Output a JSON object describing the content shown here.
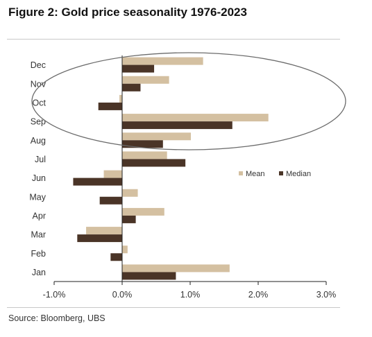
{
  "title": "Figure 2: Gold price seasonality 1976-2023",
  "source": "Source: Bloomberg, UBS",
  "colors": {
    "mean": "#d4c0a1",
    "median": "#4a3427",
    "axis": "#222222",
    "highlight": "#6b6b6b"
  },
  "chart_data": {
    "type": "bar",
    "orientation": "horizontal",
    "categories": [
      "Jan",
      "Feb",
      "Mar",
      "Apr",
      "May",
      "Jun",
      "Jul",
      "Aug",
      "Sep",
      "Oct",
      "Nov",
      "Dec"
    ],
    "series": [
      {
        "name": "Mean",
        "values": [
          1.58,
          0.08,
          -0.53,
          0.62,
          0.23,
          -0.27,
          0.66,
          1.01,
          2.15,
          -0.04,
          0.69,
          1.19
        ]
      },
      {
        "name": "Median",
        "values": [
          0.79,
          -0.17,
          -0.66,
          0.2,
          -0.33,
          -0.72,
          0.93,
          0.6,
          1.62,
          -0.35,
          0.27,
          0.47
        ]
      }
    ],
    "xlim": [
      -1.0,
      3.0
    ],
    "x_ticks": [
      -1.0,
      0.0,
      1.0,
      2.0,
      3.0
    ],
    "x_tick_labels": [
      "-1.0%",
      "0.0%",
      "1.0%",
      "2.0%",
      "3.0%"
    ],
    "legend": {
      "placement": "right",
      "entries": [
        "Mean",
        "Median"
      ]
    },
    "annotations": [
      "ellipse highlighting Sep-Dec"
    ],
    "grid": false
  }
}
